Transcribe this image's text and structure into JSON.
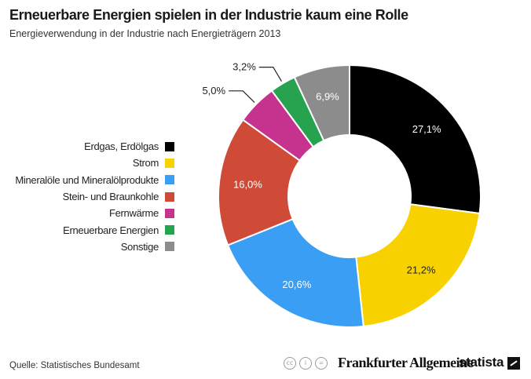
{
  "header": {
    "title": "Erneuerbare Energien spielen in der Industrie kaum eine Rolle",
    "subtitle": "Energieverwendung in der Industrie nach Energieträgern 2013"
  },
  "chart_data": {
    "type": "pie",
    "donut": true,
    "legend_position": "left",
    "categories": [
      "Erdgas, Erdölgas",
      "Strom",
      "Mineralöle und Mineralölprodukte",
      "Stein- und Braunkohle",
      "Fernwärme",
      "Erneuerbare Energien",
      "Sonstige"
    ],
    "values": [
      27.1,
      21.2,
      20.6,
      16.0,
      5.0,
      3.2,
      6.9
    ],
    "value_labels": [
      "27,1%",
      "21,2%",
      "20,6%",
      "16,0%",
      "5,0%",
      "3,2%",
      "6,9%"
    ],
    "colors": [
      "#000000",
      "#f7d200",
      "#3a9ff4",
      "#cf4b37",
      "#c5338e",
      "#27a34f",
      "#8c8c8c"
    ],
    "label_colors": [
      "#ffffff",
      "#222222",
      "#ffffff",
      "#ffffff",
      "#222222",
      "#222222",
      "#ffffff"
    ],
    "outside_labels": [
      false,
      false,
      false,
      false,
      true,
      true,
      false
    ],
    "unit": "%"
  },
  "footer": {
    "source": "Quelle: Statistisches Bundesamt",
    "logo_faz": "Frankfurter Allgemeine",
    "logo_statista": "statista",
    "cc_icons": [
      "cc",
      "i",
      "="
    ]
  }
}
